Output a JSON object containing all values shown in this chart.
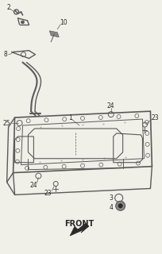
{
  "bg_color": "#f0efe8",
  "line_color": "#5a5a5a",
  "dark_color": "#2a2a2a",
  "gray_color": "#888888",
  "title": "FRONT",
  "figsize": [
    2.05,
    3.2
  ],
  "dpi": 100
}
